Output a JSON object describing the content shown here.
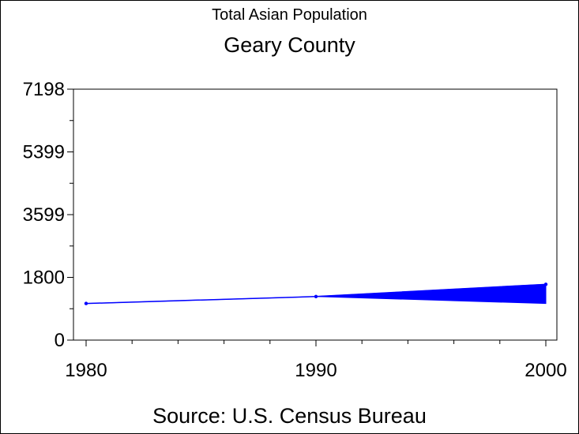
{
  "chart_data": {
    "type": "line",
    "title": "Total Asian Population",
    "subtitle": "Geary County",
    "footnote": "Source: U.S. Census Bureau",
    "x": [
      1980,
      1990,
      2000
    ],
    "series": [
      {
        "values": [
          1050,
          1250,
          1600
        ],
        "color": "#0000ff",
        "band_low": [
          1050,
          1250,
          1050
        ]
      }
    ],
    "xlim": [
      1980,
      2000
    ],
    "ylim": [
      0,
      7198
    ],
    "x_ticks": [
      "1980",
      "1990",
      "2000"
    ],
    "y_ticks": [
      "0",
      "1800",
      "3599",
      "5399",
      "7198"
    ],
    "grid": false,
    "legend": "none"
  }
}
